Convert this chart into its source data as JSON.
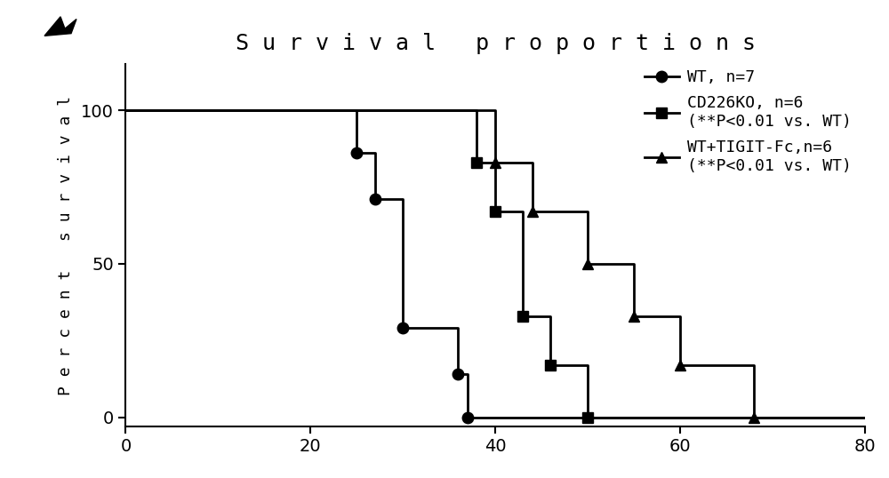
{
  "title": "S u r v i v a l   p r o p o r t i o n s",
  "ylabel": "P e r c e n t   s u r v i v a l",
  "xlim": [
    0,
    80
  ],
  "ylim": [
    -3,
    115
  ],
  "xticks": [
    0,
    20,
    40,
    60,
    80
  ],
  "yticks": [
    0,
    50,
    100
  ],
  "background_color": "#ffffff",
  "title_fontsize": 18,
  "label_fontsize": 13,
  "tick_fontsize": 14,
  "legend_fontsize": 13,
  "wt_x": [
    0,
    25,
    25,
    27,
    27,
    30,
    30,
    36,
    36,
    37,
    37,
    80
  ],
  "wt_y": [
    100,
    100,
    86,
    86,
    71,
    71,
    29,
    29,
    14,
    14,
    0,
    0
  ],
  "wt_markers_x": [
    25,
    27,
    30,
    36,
    37
  ],
  "wt_markers_y": [
    86,
    71,
    29,
    14,
    0
  ],
  "wt_label": "WT, n=7",
  "cd_x": [
    0,
    38,
    38,
    40,
    40,
    43,
    43,
    46,
    46,
    50,
    50,
    80
  ],
  "cd_y": [
    100,
    100,
    83,
    83,
    67,
    67,
    33,
    33,
    17,
    17,
    0,
    0
  ],
  "cd_markers_x": [
    38,
    40,
    43,
    46,
    50
  ],
  "cd_markers_y": [
    83,
    67,
    33,
    17,
    0
  ],
  "cd_label1": "CD226KO, n=6",
  "cd_label2": "(**P<0.01 vs. WT)",
  "tg_x": [
    0,
    40,
    40,
    44,
    44,
    50,
    50,
    55,
    55,
    60,
    60,
    68,
    68,
    80
  ],
  "tg_y": [
    100,
    100,
    83,
    83,
    67,
    67,
    50,
    50,
    33,
    33,
    17,
    17,
    0,
    0
  ],
  "tg_markers_x": [
    40,
    44,
    50,
    55,
    60,
    68
  ],
  "tg_markers_y": [
    83,
    67,
    50,
    33,
    17,
    0
  ],
  "tg_label1": "WT+TIGIT-Fc,n=6",
  "tg_label2": "(**P<0.01 vs. WT)"
}
